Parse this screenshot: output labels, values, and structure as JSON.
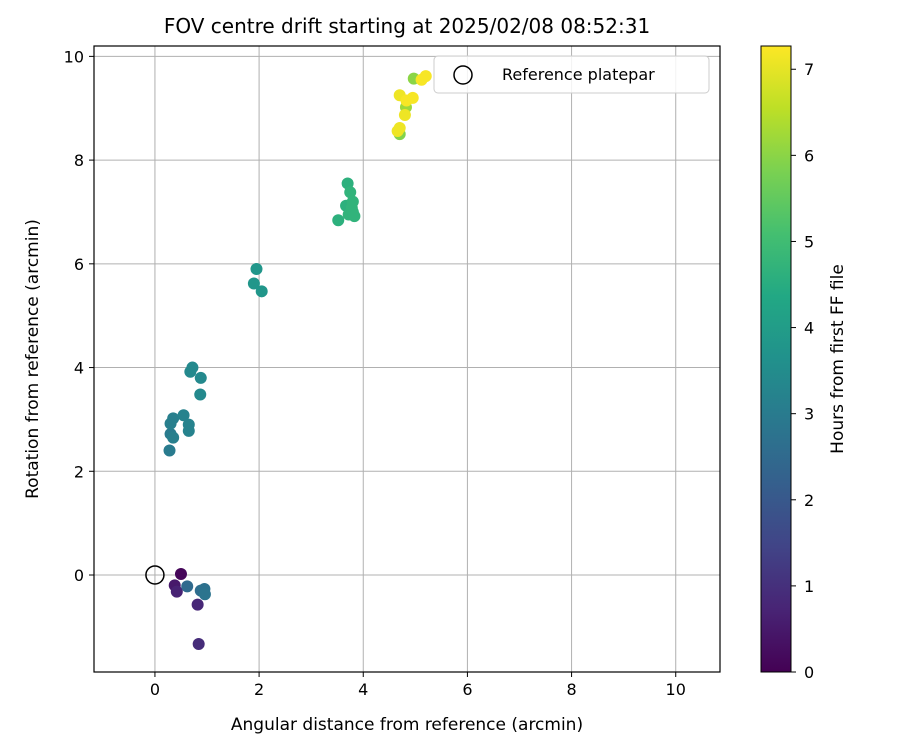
{
  "chart_data": {
    "type": "scatter",
    "title": "FOV centre drift starting at 2025/02/08 08:52:31",
    "xlabel": "Angular distance from reference (arcmin)",
    "ylabel": "Rotation from reference (arcmin)",
    "xlim": [
      -1.17,
      10.85
    ],
    "ylim": [
      -1.87,
      10.2
    ],
    "xticks": [
      0,
      2,
      4,
      6,
      8,
      10
    ],
    "yticks": [
      0,
      2,
      4,
      6,
      8,
      10
    ],
    "grid": true,
    "legend": {
      "placement": "top-right",
      "entries": [
        "Reference platepar"
      ]
    },
    "colorbar": {
      "label": "Hours from first FF file",
      "min": 0,
      "max": 7.27,
      "ticks": [
        0,
        1,
        2,
        3,
        4,
        5,
        6,
        7
      ],
      "colormap": "viridis"
    },
    "reference_point": {
      "x": 0,
      "y": 0,
      "label": "Reference platepar"
    },
    "points": [
      {
        "x": 0.5,
        "y": 0.02,
        "c": 0.1
      },
      {
        "x": 0.38,
        "y": -0.2,
        "c": 0.5
      },
      {
        "x": 0.42,
        "y": -0.32,
        "c": 0.7
      },
      {
        "x": 0.82,
        "y": -0.57,
        "c": 0.8
      },
      {
        "x": 0.84,
        "y": -1.33,
        "c": 0.9
      },
      {
        "x": 0.62,
        "y": -0.22,
        "c": 2.5
      },
      {
        "x": 0.88,
        "y": -0.3,
        "c": 2.6
      },
      {
        "x": 0.95,
        "y": -0.27,
        "c": 2.7
      },
      {
        "x": 0.96,
        "y": -0.37,
        "c": 2.8
      },
      {
        "x": 0.28,
        "y": 2.4,
        "c": 3.0
      },
      {
        "x": 0.3,
        "y": 2.72,
        "c": 3.0
      },
      {
        "x": 0.35,
        "y": 2.65,
        "c": 3.1
      },
      {
        "x": 0.3,
        "y": 2.92,
        "c": 3.1
      },
      {
        "x": 0.35,
        "y": 3.02,
        "c": 3.1
      },
      {
        "x": 0.55,
        "y": 3.08,
        "c": 3.2
      },
      {
        "x": 0.65,
        "y": 2.9,
        "c": 3.2
      },
      {
        "x": 0.65,
        "y": 2.78,
        "c": 3.2
      },
      {
        "x": 0.68,
        "y": 3.92,
        "c": 3.4
      },
      {
        "x": 0.72,
        "y": 4.0,
        "c": 3.4
      },
      {
        "x": 0.88,
        "y": 3.8,
        "c": 3.4
      },
      {
        "x": 0.87,
        "y": 3.48,
        "c": 3.4
      },
      {
        "x": 1.9,
        "y": 5.62,
        "c": 3.8
      },
      {
        "x": 1.95,
        "y": 5.9,
        "c": 3.8
      },
      {
        "x": 2.05,
        "y": 5.47,
        "c": 3.8
      },
      {
        "x": 3.52,
        "y": 6.84,
        "c": 4.6
      },
      {
        "x": 3.67,
        "y": 7.12,
        "c": 4.6
      },
      {
        "x": 3.7,
        "y": 7.55,
        "c": 4.6
      },
      {
        "x": 3.72,
        "y": 6.95,
        "c": 4.7
      },
      {
        "x": 3.75,
        "y": 7.38,
        "c": 4.7
      },
      {
        "x": 3.78,
        "y": 7.08,
        "c": 4.7
      },
      {
        "x": 3.8,
        "y": 7.2,
        "c": 4.7
      },
      {
        "x": 3.8,
        "y": 7.0,
        "c": 4.7
      },
      {
        "x": 3.83,
        "y": 6.92,
        "c": 4.7
      },
      {
        "x": 4.7,
        "y": 8.5,
        "c": 5.9
      },
      {
        "x": 4.82,
        "y": 9.02,
        "c": 6.2
      },
      {
        "x": 4.97,
        "y": 9.57,
        "c": 6.0
      },
      {
        "x": 4.66,
        "y": 8.56,
        "c": 7.1
      },
      {
        "x": 4.7,
        "y": 8.62,
        "c": 7.1
      },
      {
        "x": 4.7,
        "y": 9.25,
        "c": 7.1
      },
      {
        "x": 4.8,
        "y": 8.87,
        "c": 7.1
      },
      {
        "x": 4.83,
        "y": 9.15,
        "c": 7.2
      },
      {
        "x": 4.95,
        "y": 9.2,
        "c": 7.2
      },
      {
        "x": 5.12,
        "y": 9.55,
        "c": 7.2
      },
      {
        "x": 5.2,
        "y": 9.62,
        "c": 7.2
      }
    ]
  }
}
